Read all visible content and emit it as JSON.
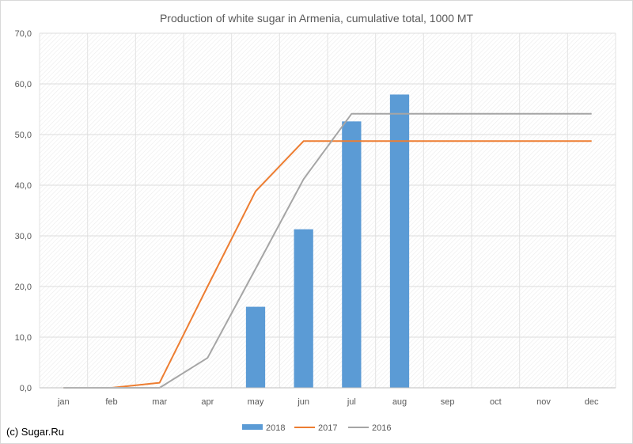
{
  "credit": "(c) Sugar.Ru",
  "chart_data": {
    "type": "bar",
    "title": "Production of white sugar in Armenia, cumulative total, 1000 MT",
    "categories": [
      "jan",
      "feb",
      "mar",
      "apr",
      "may",
      "jun",
      "jul",
      "aug",
      "sep",
      "oct",
      "nov",
      "dec"
    ],
    "ylim": [
      0,
      70
    ],
    "yticks": [
      0,
      10,
      20,
      30,
      40,
      50,
      60,
      70
    ],
    "ytick_labels": [
      "0,0",
      "10,0",
      "20,0",
      "30,0",
      "40,0",
      "50,0",
      "60,0",
      "70,0"
    ],
    "grid": true,
    "legend_position": "bottom",
    "series": [
      {
        "name": "2018",
        "type": "bar",
        "color": "#5b9bd5",
        "values": [
          null,
          null,
          null,
          null,
          16.0,
          31.3,
          52.6,
          57.9,
          null,
          null,
          null,
          null
        ]
      },
      {
        "name": "2017",
        "type": "line",
        "color": "#ed7d31",
        "values": [
          0,
          0,
          1.0,
          20.0,
          38.8,
          48.7,
          48.7,
          48.7,
          48.7,
          48.7,
          48.7,
          48.7
        ]
      },
      {
        "name": "2016",
        "type": "line",
        "color": "#a5a5a5",
        "values": [
          0,
          0,
          0,
          5.9,
          23.5,
          41.2,
          54.1,
          54.1,
          54.1,
          54.1,
          54.1,
          54.1
        ]
      }
    ]
  }
}
